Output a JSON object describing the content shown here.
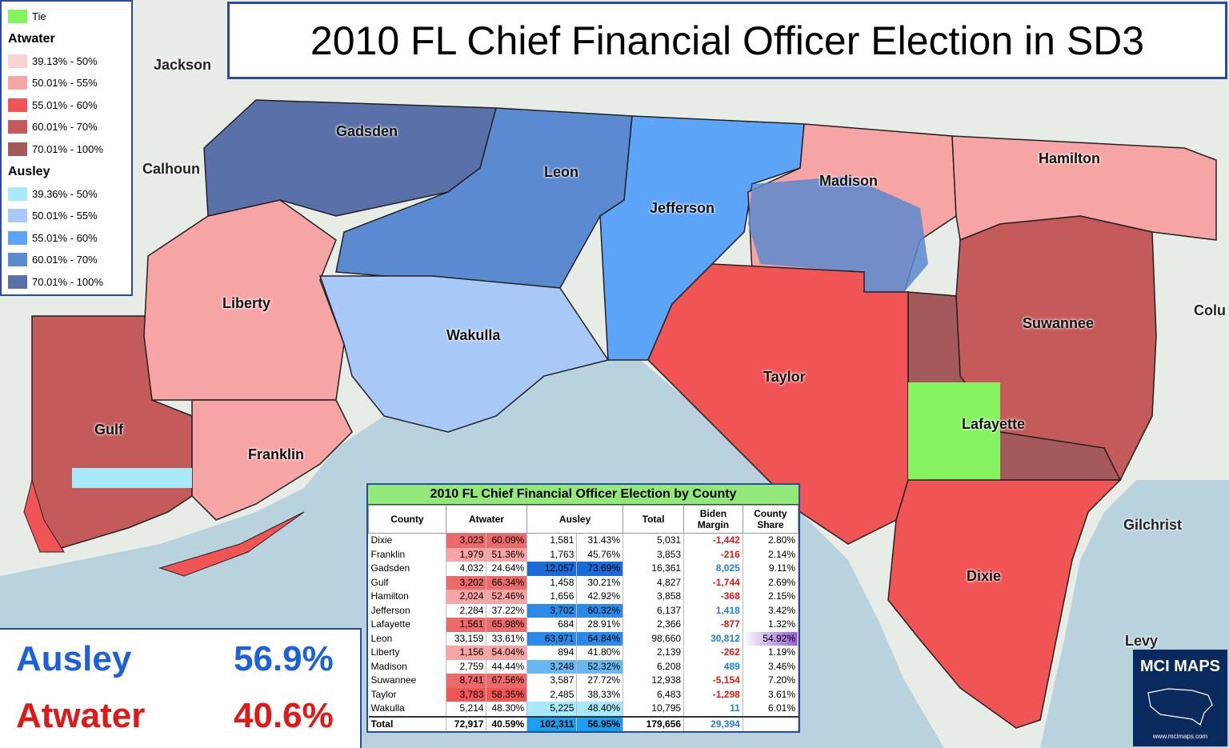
{
  "title": "2010 FL Chief Financial Officer Election in SD3",
  "legend": {
    "tie": {
      "label": "Tie",
      "color": "#85f360"
    },
    "atwater": {
      "heading": "Atwater",
      "items": [
        {
          "label": "39.13% - 50%",
          "color": "#fbd2d2"
        },
        {
          "label": "50.01% - 55%",
          "color": "#f7a4a4"
        },
        {
          "label": "55.01% - 60%",
          "color": "#f15454"
        },
        {
          "label": "60.01% - 70%",
          "color": "#c45a5a"
        },
        {
          "label": "70.01% - 100%",
          "color": "#a45a5a"
        }
      ]
    },
    "ausley": {
      "heading": "Ausley",
      "items": [
        {
          "label": "39.36% - 50%",
          "color": "#a8eafa"
        },
        {
          "label": "50.01% - 55%",
          "color": "#a8c8f8"
        },
        {
          "label": "55.01% - 60%",
          "color": "#5ca4f8"
        },
        {
          "label": "60.01% - 70%",
          "color": "#5c8ad0"
        },
        {
          "label": "70.01% - 100%",
          "color": "#5a70a8"
        }
      ]
    }
  },
  "counties": {
    "gadsden": "Gadsden",
    "leon": "Leon",
    "jefferson": "Jefferson",
    "madison": "Madison",
    "hamilton": "Hamilton",
    "liberty": "Liberty",
    "wakulla": "Wakulla",
    "taylor": "Taylor",
    "suwannee": "Suwannee",
    "gulf": "Gulf",
    "franklin": "Franklin",
    "lafayette": "Lafayette",
    "dixie": "Dixie"
  },
  "outside": {
    "jackson": "Jackson",
    "calhoun": "Calhoun",
    "gilchrist": "Gilchrist",
    "levy": "Levy",
    "colu": "Colu"
  },
  "results": {
    "ausley": {
      "name": "Ausley",
      "pct": "56.9%",
      "color": "#1e5fdc"
    },
    "atwater": {
      "name": "Atwater",
      "pct": "40.6%",
      "color": "#e01818"
    }
  },
  "table": {
    "caption": "2010 FL Chief Financial Officer Election by County",
    "headers": {
      "county": "County",
      "atwater": "Atwater",
      "ausley": "Ausley",
      "total": "Total",
      "margin": "Biden Margin",
      "share": "County Share"
    },
    "rows": [
      {
        "county": "Dixie",
        "at": "3,023",
        "atp": "60.09%",
        "au": "1,581",
        "aup": "31.43%",
        "total": "5,031",
        "margin": "-1,442",
        "share": "2.80%"
      },
      {
        "county": "Franklin",
        "at": "1,979",
        "atp": "51.36%",
        "au": "1,763",
        "aup": "45.76%",
        "total": "3,853",
        "margin": "-216",
        "share": "2.14%"
      },
      {
        "county": "Gadsden",
        "at": "4,032",
        "atp": "24.64%",
        "au": "12,057",
        "aup": "73.69%",
        "total": "16,361",
        "margin": "8,025",
        "share": "9.11%"
      },
      {
        "county": "Gulf",
        "at": "3,202",
        "atp": "66.34%",
        "au": "1,458",
        "aup": "30.21%",
        "total": "4,827",
        "margin": "-1,744",
        "share": "2.69%"
      },
      {
        "county": "Hamilton",
        "at": "2,024",
        "atp": "52.46%",
        "au": "1,656",
        "aup": "42.92%",
        "total": "3,858",
        "margin": "-368",
        "share": "2.15%"
      },
      {
        "county": "Jefferson",
        "at": "2,284",
        "atp": "37.22%",
        "au": "3,702",
        "aup": "60.32%",
        "total": "6,137",
        "margin": "1,418",
        "share": "3.42%"
      },
      {
        "county": "Lafayette",
        "at": "1,561",
        "atp": "65.98%",
        "au": "684",
        "aup": "28.91%",
        "total": "2,366",
        "margin": "-877",
        "share": "1.32%"
      },
      {
        "county": "Leon",
        "at": "33,159",
        "atp": "33.61%",
        "au": "63,971",
        "aup": "64.84%",
        "total": "98,660",
        "margin": "30,812",
        "share": "54.92%"
      },
      {
        "county": "Liberty",
        "at": "1,156",
        "atp": "54.04%",
        "au": "894",
        "aup": "41.80%",
        "total": "2,139",
        "margin": "-262",
        "share": "1.19%"
      },
      {
        "county": "Madison",
        "at": "2,759",
        "atp": "44.44%",
        "au": "3,248",
        "aup": "52.32%",
        "total": "6,208",
        "margin": "489",
        "share": "3.46%"
      },
      {
        "county": "Suwannee",
        "at": "8,741",
        "atp": "67.56%",
        "au": "3,587",
        "aup": "27.72%",
        "total": "12,938",
        "margin": "-5,154",
        "share": "7.20%"
      },
      {
        "county": "Taylor",
        "at": "3,783",
        "atp": "58.35%",
        "au": "2,485",
        "aup": "38.33%",
        "total": "6,483",
        "margin": "-1,298",
        "share": "3.61%"
      },
      {
        "county": "Wakulla",
        "at": "5,214",
        "atp": "48.30%",
        "au": "5,225",
        "aup": "48.40%",
        "total": "10,795",
        "margin": "11",
        "share": "6.01%"
      }
    ],
    "total": {
      "county": "Total",
      "at": "72,917",
      "atp": "40.59%",
      "au": "102,311",
      "aup": "56.95%",
      "total": "179,656",
      "margin": "29,394",
      "share": ""
    }
  },
  "logo": {
    "text": "MCI MAPS",
    "url": "www.mcimaps.com"
  }
}
